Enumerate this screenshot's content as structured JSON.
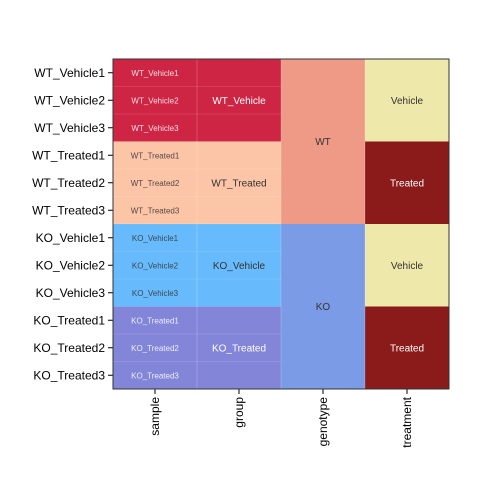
{
  "chart_data": {
    "type": "heatmap",
    "rows": [
      "WT_Vehicle1",
      "WT_Vehicle2",
      "WT_Vehicle3",
      "WT_Treated1",
      "WT_Treated2",
      "WT_Treated3",
      "KO_Vehicle1",
      "KO_Vehicle2",
      "KO_Vehicle3",
      "KO_Treated1",
      "KO_Treated2",
      "KO_Treated3"
    ],
    "columns": [
      "sample",
      "group",
      "genotype",
      "treatment"
    ],
    "sample_labels": [
      "WT_Vehicle1",
      "WT_Vehicle2",
      "WT_Vehicle3",
      "WT_Treated1",
      "WT_Treated2",
      "WT_Treated3",
      "KO_Vehicle1",
      "KO_Vehicle2",
      "KO_Vehicle3",
      "KO_Treated1",
      "KO_Treated2",
      "KO_Treated3"
    ],
    "group_blocks": [
      {
        "label": "WT_Vehicle",
        "start": 0,
        "end": 2,
        "color": "#CF2544",
        "text_color": "#ffffff"
      },
      {
        "label": "WT_Treated",
        "start": 3,
        "end": 5,
        "color": "#FDC5A8",
        "text_color": "#333333"
      },
      {
        "label": "KO_Vehicle",
        "start": 6,
        "end": 8,
        "color": "#67BBFC",
        "text_color": "#333333"
      },
      {
        "label": "KO_Treated",
        "start": 9,
        "end": 11,
        "color": "#8385D9",
        "text_color": "#ffffff"
      }
    ],
    "genotype_blocks": [
      {
        "label": "WT",
        "start": 0,
        "end": 5,
        "color": "#EF9A86",
        "text_color": "#333333"
      },
      {
        "label": "KO",
        "start": 6,
        "end": 11,
        "color": "#7B9BE6",
        "text_color": "#333333"
      }
    ],
    "treatment_blocks": [
      {
        "label": "Vehicle",
        "start": 0,
        "end": 2,
        "color": "#EFE8AB",
        "text_color": "#333333"
      },
      {
        "label": "Treated",
        "start": 3,
        "end": 5,
        "color": "#8B1A1A",
        "text_color": "#ffffff"
      },
      {
        "label": "Vehicle",
        "start": 6,
        "end": 8,
        "color": "#EFE8AB",
        "text_color": "#333333"
      },
      {
        "label": "Treated",
        "start": 9,
        "end": 11,
        "color": "#8B1A1A",
        "text_color": "#ffffff"
      }
    ]
  }
}
